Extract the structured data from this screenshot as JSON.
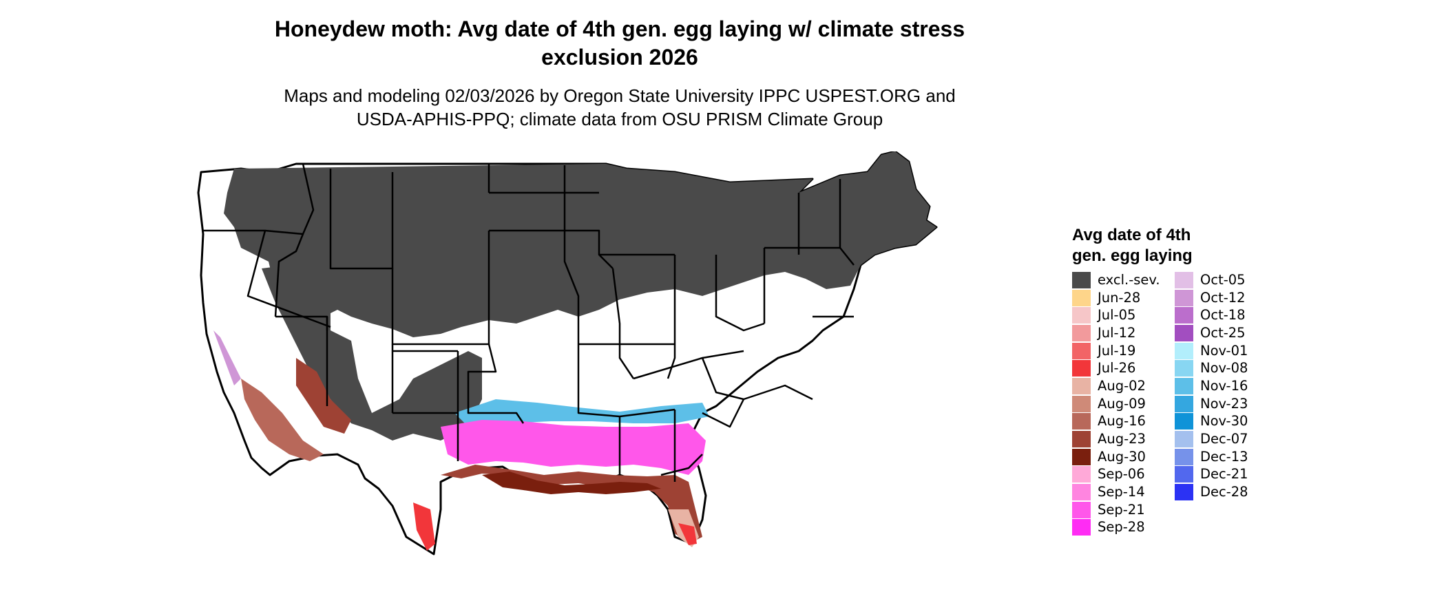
{
  "title": "Honeydew moth: Avg date of 4th gen. egg laying w/ climate stress\nexclusion 2026",
  "subtitle": "Maps and modeling 02/03/2026 by Oregon State University IPPC USPEST.ORG and\nUSDA-APHIS-PPQ; climate data from OSU PRISM Climate Group",
  "legend": {
    "title": "Avg date of 4th\ngen. egg laying",
    "items": [
      {
        "label": "excl.-sev.",
        "color": "#4a4a4a"
      },
      {
        "label": "Jun-28",
        "color": "#fed58a"
      },
      {
        "label": "Jul-05",
        "color": "#f6c6c8"
      },
      {
        "label": "Jul-12",
        "color": "#f29a9c"
      },
      {
        "label": "Jul-19",
        "color": "#f26466"
      },
      {
        "label": "Jul-26",
        "color": "#f2363a"
      },
      {
        "label": "Aug-02",
        "color": "#e8b3a4"
      },
      {
        "label": "Aug-09",
        "color": "#cf8a78"
      },
      {
        "label": "Aug-16",
        "color": "#b8685a"
      },
      {
        "label": "Aug-23",
        "color": "#9e4234"
      },
      {
        "label": "Aug-30",
        "color": "#7a1f0e"
      },
      {
        "label": "Sep-06",
        "color": "#ffa9d8"
      },
      {
        "label": "Sep-14",
        "color": "#ff85e0"
      },
      {
        "label": "Sep-21",
        "color": "#ff57ea"
      },
      {
        "label": "Sep-28",
        "color": "#ff2cf4"
      },
      {
        "label": "Oct-05",
        "color": "#e2bfe6"
      },
      {
        "label": "Oct-12",
        "color": "#cf96d6"
      },
      {
        "label": "Oct-18",
        "color": "#bb6ecc"
      },
      {
        "label": "Oct-25",
        "color": "#a24ec0"
      },
      {
        "label": "Nov-01",
        "color": "#b2eefc"
      },
      {
        "label": "Nov-08",
        "color": "#88d6f2"
      },
      {
        "label": "Nov-16",
        "color": "#5dbfe8"
      },
      {
        "label": "Nov-23",
        "color": "#34a7e0"
      },
      {
        "label": "Nov-30",
        "color": "#0f93d8"
      },
      {
        "label": "Dec-07",
        "color": "#a4c0ee"
      },
      {
        "label": "Dec-13",
        "color": "#7692ea"
      },
      {
        "label": "Dec-21",
        "color": "#5268ee"
      },
      {
        "label": "Dec-28",
        "color": "#2b32f4"
      }
    ]
  }
}
